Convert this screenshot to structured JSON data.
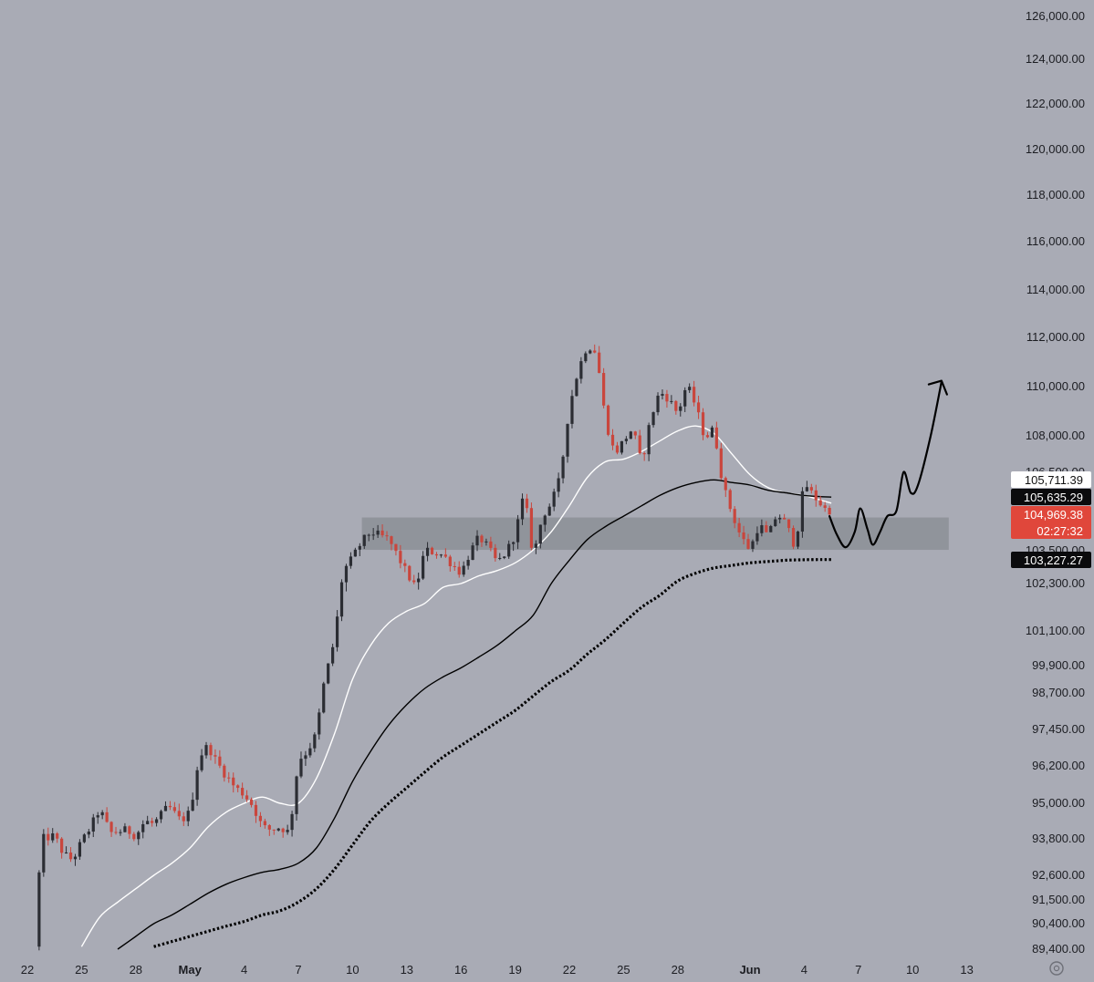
{
  "chart_data": {
    "type": "candlestick",
    "colors": {
      "background": "#a9abb5",
      "up_candle": "#2b2d33",
      "down_candle": "#c9463d",
      "ma_fast": "#ffffff",
      "ma_mid": "#000000",
      "ma_slow_dotted": "#000000",
      "zone": "#8c8f97",
      "tag_last": "#e0473b",
      "tag_dark": "#0b0b0d",
      "tag_light": "#ffffff"
    },
    "y_axis": {
      "ticks": [
        {
          "value": 126000,
          "label": "126,000.00"
        },
        {
          "value": 124000,
          "label": "124,000.00"
        },
        {
          "value": 122000,
          "label": "122,000.00"
        },
        {
          "value": 120000,
          "label": "120,000.00"
        },
        {
          "value": 118000,
          "label": "118,000.00"
        },
        {
          "value": 116000,
          "label": "116,000.00"
        },
        {
          "value": 114000,
          "label": "114,000.00"
        },
        {
          "value": 112000,
          "label": "112,000.00"
        },
        {
          "value": 110000,
          "label": "110,000.00"
        },
        {
          "value": 108000,
          "label": "108,000.00"
        },
        {
          "value": 102300,
          "label": "102,300.00"
        },
        {
          "value": 101100,
          "label": "101,100.00"
        },
        {
          "value": 99900,
          "label": "99,900.00"
        },
        {
          "value": 98700,
          "label": "98,700.00"
        },
        {
          "value": 97450,
          "label": "97,450.00"
        },
        {
          "value": 96200,
          "label": "96,200.00"
        },
        {
          "value": 95000,
          "label": "95,000.00"
        },
        {
          "value": 93800,
          "label": "93,800.00"
        },
        {
          "value": 92600,
          "label": "92,600.00"
        },
        {
          "value": 91500,
          "label": "91,500.00"
        },
        {
          "value": 90400,
          "label": "90,400.00"
        },
        {
          "value": 89400,
          "label": "89,400.00"
        }
      ]
    },
    "x_axis": {
      "ticks": [
        {
          "day": 0,
          "label": "22",
          "bold": false
        },
        {
          "day": 3,
          "label": "25",
          "bold": false
        },
        {
          "day": 6,
          "label": "28",
          "bold": false
        },
        {
          "day": 9,
          "label": "May",
          "bold": true
        },
        {
          "day": 12,
          "label": "4",
          "bold": false
        },
        {
          "day": 15,
          "label": "7",
          "bold": false
        },
        {
          "day": 18,
          "label": "10",
          "bold": false
        },
        {
          "day": 21,
          "label": "13",
          "bold": false
        },
        {
          "day": 24,
          "label": "16",
          "bold": false
        },
        {
          "day": 27,
          "label": "19",
          "bold": false
        },
        {
          "day": 30,
          "label": "22",
          "bold": false
        },
        {
          "day": 33,
          "label": "25",
          "bold": false
        },
        {
          "day": 36,
          "label": "28",
          "bold": false
        },
        {
          "day": 40,
          "label": "Jun",
          "bold": true
        },
        {
          "day": 43,
          "label": "4",
          "bold": false
        },
        {
          "day": 46,
          "label": "7",
          "bold": false
        },
        {
          "day": 49,
          "label": "10",
          "bold": false
        },
        {
          "day": 52,
          "label": "13",
          "bold": false
        }
      ]
    },
    "price_tags": {
      "light": "105,711.39",
      "dark": "105,635.29",
      "last": "104,969.38",
      "countdown": "02:27:32",
      "bottom": "103,227.27",
      "partial_top": "106,500.00",
      "partial_bottom": "103,500.00"
    },
    "zone": {
      "price_top": 104850,
      "price_bottom": 103600,
      "day_start": 17,
      "day_end": 51
    },
    "price_path": [
      [
        0.4,
        89500
      ],
      [
        0.5,
        91500
      ],
      [
        0.8,
        93800
      ],
      [
        1.5,
        93900
      ],
      [
        2.0,
        93300
      ],
      [
        2.5,
        93100
      ],
      [
        3.0,
        93700
      ],
      [
        3.5,
        94200
      ],
      [
        4.0,
        94800
      ],
      [
        4.6,
        94000
      ],
      [
        5.5,
        94100
      ],
      [
        6.0,
        93900
      ],
      [
        6.5,
        94400
      ],
      [
        7.0,
        94300
      ],
      [
        7.8,
        94900
      ],
      [
        8.5,
        94400
      ],
      [
        9.0,
        94700
      ],
      [
        9.5,
        96500
      ],
      [
        10.0,
        96900
      ],
      [
        10.5,
        96300
      ],
      [
        11.0,
        95900
      ],
      [
        11.5,
        95500
      ],
      [
        12.0,
        95300
      ],
      [
        12.5,
        94900
      ],
      [
        13.0,
        94200
      ],
      [
        13.5,
        94100
      ],
      [
        14.0,
        94200
      ],
      [
        14.5,
        94000
      ],
      [
        15.0,
        96400
      ],
      [
        15.5,
        96700
      ],
      [
        16.0,
        97300
      ],
      [
        16.5,
        99500
      ],
      [
        17.0,
        100800
      ],
      [
        17.5,
        102800
      ],
      [
        18.0,
        103300
      ],
      [
        18.5,
        103900
      ],
      [
        19.0,
        104300
      ],
      [
        20.0,
        104000
      ],
      [
        21.0,
        102700
      ],
      [
        21.5,
        102100
      ],
      [
        22.0,
        103600
      ],
      [
        23.0,
        103400
      ],
      [
        24.0,
        102700
      ],
      [
        24.5,
        103500
      ],
      [
        25.0,
        104100
      ],
      [
        25.5,
        103700
      ],
      [
        26.0,
        103100
      ],
      [
        26.5,
        103500
      ],
      [
        27.0,
        104200
      ],
      [
        27.5,
        105800
      ],
      [
        28.0,
        103300
      ],
      [
        28.5,
        104900
      ],
      [
        29.0,
        105400
      ],
      [
        29.5,
        106400
      ],
      [
        30.0,
        109200
      ],
      [
        30.5,
        110700
      ],
      [
        31.0,
        111700
      ],
      [
        31.5,
        111400
      ],
      [
        32.0,
        108600
      ],
      [
        32.5,
        107300
      ],
      [
        33.0,
        107800
      ],
      [
        33.5,
        108300
      ],
      [
        34.0,
        106900
      ],
      [
        34.5,
        108700
      ],
      [
        35.0,
        109800
      ],
      [
        35.5,
        109500
      ],
      [
        36.0,
        108900
      ],
      [
        36.5,
        110100
      ],
      [
        37.0,
        109200
      ],
      [
        37.5,
        107900
      ],
      [
        38.0,
        108300
      ],
      [
        38.5,
        106100
      ],
      [
        39.0,
        105000
      ],
      [
        39.5,
        104100
      ],
      [
        40.0,
        103600
      ],
      [
        40.5,
        104600
      ],
      [
        41.0,
        104100
      ],
      [
        41.5,
        105000
      ],
      [
        42.0,
        104600
      ],
      [
        42.5,
        103700
      ],
      [
        43.0,
        106200
      ],
      [
        43.5,
        105700
      ],
      [
        44.0,
        105300
      ],
      [
        44.4,
        104969
      ]
    ],
    "projection": [
      [
        44.4,
        104900
      ],
      [
        44.8,
        104200
      ],
      [
        45.3,
        103700
      ],
      [
        45.8,
        104300
      ],
      [
        46.1,
        105200
      ],
      [
        46.5,
        104400
      ],
      [
        46.8,
        103800
      ],
      [
        47.2,
        104300
      ],
      [
        47.6,
        104900
      ],
      [
        48.1,
        105100
      ],
      [
        48.5,
        106600
      ],
      [
        48.9,
        105800
      ],
      [
        49.3,
        106100
      ],
      [
        50.0,
        108000
      ],
      [
        50.6,
        110200
      ]
    ],
    "ma_fast": [
      [
        3.0,
        89500
      ],
      [
        4.0,
        90700
      ],
      [
        5.0,
        91400
      ],
      [
        6.0,
        92000
      ],
      [
        7.0,
        92600
      ],
      [
        8.0,
        93000
      ],
      [
        9.0,
        93500
      ],
      [
        10.0,
        94200
      ],
      [
        11.0,
        94700
      ],
      [
        12.0,
        95000
      ],
      [
        13.0,
        95200
      ],
      [
        14.0,
        95000
      ],
      [
        15.0,
        95000
      ],
      [
        16.0,
        95800
      ],
      [
        17.0,
        97300
      ],
      [
        18.0,
        99300
      ],
      [
        19.0,
        100600
      ],
      [
        20.0,
        101300
      ],
      [
        21.0,
        101600
      ],
      [
        22.0,
        101800
      ],
      [
        23.0,
        102200
      ],
      [
        24.0,
        102300
      ],
      [
        25.0,
        102600
      ],
      [
        26.0,
        102800
      ],
      [
        27.0,
        103100
      ],
      [
        28.0,
        103600
      ],
      [
        29.0,
        104300
      ],
      [
        30.0,
        105300
      ],
      [
        31.0,
        106400
      ],
      [
        32.0,
        107000
      ],
      [
        33.0,
        107100
      ],
      [
        34.0,
        107400
      ],
      [
        35.0,
        107800
      ],
      [
        36.0,
        108200
      ],
      [
        37.0,
        108400
      ],
      [
        38.0,
        108100
      ],
      [
        39.0,
        107300
      ],
      [
        40.0,
        106500
      ],
      [
        41.0,
        106000
      ],
      [
        42.0,
        105800
      ],
      [
        43.0,
        105700
      ],
      [
        44.0,
        105500
      ],
      [
        44.5,
        105400
      ]
    ],
    "ma_mid": [
      [
        5.0,
        89400
      ],
      [
        6.0,
        89900
      ],
      [
        7.0,
        90400
      ],
      [
        8.0,
        90800
      ],
      [
        9.0,
        91300
      ],
      [
        10.0,
        91800
      ],
      [
        11.0,
        92200
      ],
      [
        12.0,
        92500
      ],
      [
        13.0,
        92700
      ],
      [
        14.0,
        92800
      ],
      [
        15.0,
        93000
      ],
      [
        16.0,
        93500
      ],
      [
        17.0,
        94500
      ],
      [
        18.0,
        95700
      ],
      [
        19.0,
        96700
      ],
      [
        20.0,
        97600
      ],
      [
        21.0,
        98300
      ],
      [
        22.0,
        98900
      ],
      [
        23.0,
        99400
      ],
      [
        24.0,
        99800
      ],
      [
        25.0,
        100200
      ],
      [
        26.0,
        100600
      ],
      [
        27.0,
        101100
      ],
      [
        28.0,
        101500
      ],
      [
        29.0,
        102300
      ],
      [
        30.0,
        103200
      ],
      [
        31.0,
        104000
      ],
      [
        32.0,
        104500
      ],
      [
        33.0,
        104900
      ],
      [
        34.0,
        105300
      ],
      [
        35.0,
        105700
      ],
      [
        36.0,
        106000
      ],
      [
        37.0,
        106200
      ],
      [
        38.0,
        106300
      ],
      [
        39.0,
        106200
      ],
      [
        40.0,
        106100
      ],
      [
        41.0,
        105900
      ],
      [
        42.0,
        105800
      ],
      [
        43.0,
        105700
      ],
      [
        44.0,
        105650
      ],
      [
        44.5,
        105635
      ]
    ],
    "ma_slow": [
      [
        7.0,
        89500
      ],
      [
        8.0,
        89700
      ],
      [
        9.0,
        89900
      ],
      [
        10.0,
        90100
      ],
      [
        11.0,
        90300
      ],
      [
        12.0,
        90500
      ],
      [
        13.0,
        90800
      ],
      [
        14.0,
        91000
      ],
      [
        15.0,
        91400
      ],
      [
        16.0,
        92000
      ],
      [
        17.0,
        92800
      ],
      [
        18.0,
        93600
      ],
      [
        19.0,
        94400
      ],
      [
        20.0,
        95000
      ],
      [
        21.0,
        95500
      ],
      [
        22.0,
        96000
      ],
      [
        23.0,
        96500
      ],
      [
        24.0,
        96900
      ],
      [
        25.0,
        97300
      ],
      [
        26.0,
        97700
      ],
      [
        27.0,
        98100
      ],
      [
        28.0,
        98600
      ],
      [
        29.0,
        99200
      ],
      [
        30.0,
        99700
      ],
      [
        31.0,
        100300
      ],
      [
        32.0,
        100800
      ],
      [
        33.0,
        101300
      ],
      [
        34.0,
        101700
      ],
      [
        35.0,
        102000
      ],
      [
        36.0,
        102400
      ],
      [
        37.0,
        102700
      ],
      [
        38.0,
        102900
      ],
      [
        39.0,
        103000
      ],
      [
        40.0,
        103100
      ],
      [
        41.0,
        103150
      ],
      [
        42.0,
        103200
      ],
      [
        43.0,
        103220
      ],
      [
        44.0,
        103225
      ],
      [
        44.5,
        103227
      ]
    ]
  }
}
